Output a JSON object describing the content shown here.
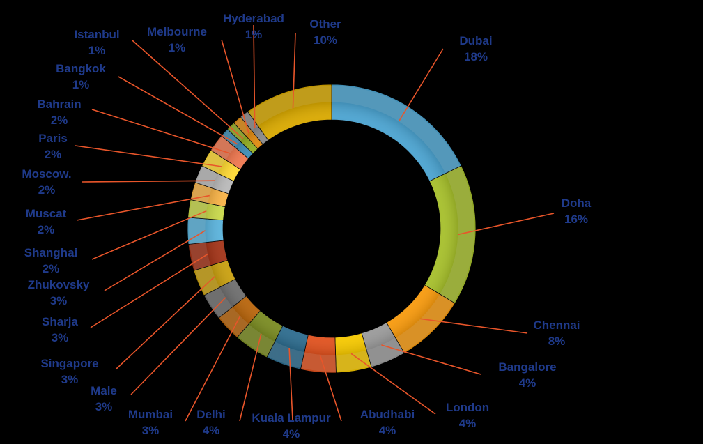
{
  "chart_data": {
    "type": "pie",
    "variant": "doughnut",
    "title": "",
    "legend": "none",
    "slices": [
      {
        "label": "Dubai",
        "value": 18,
        "value_label": "18%",
        "color": "#4BA3D0"
      },
      {
        "label": "Doha",
        "value": 16,
        "value_label": "16%",
        "color": "#A6BF2B"
      },
      {
        "label": "Chennai",
        "value": 8,
        "value_label": "8%",
        "color": "#F79A0E"
      },
      {
        "label": "Bangalore",
        "value": 4,
        "value_label": "4%",
        "color": "#9A9A9A"
      },
      {
        "label": "London",
        "value": 4,
        "value_label": "4%",
        "color": "#F5C800"
      },
      {
        "label": "Abudhabi",
        "value": 4,
        "value_label": "4%",
        "color": "#E0521F"
      },
      {
        "label": "Kuala Lampur",
        "value": 4,
        "value_label": "4%",
        "color": "#2D6C8E"
      },
      {
        "label": "Delhi",
        "value": 4,
        "value_label": "4%",
        "color": "#7A8B22"
      },
      {
        "label": "Mumbai",
        "value": 3,
        "value_label": "3%",
        "color": "#B8650C"
      },
      {
        "label": "Male",
        "value": 3,
        "value_label": "3%",
        "color": "#6E6E6E"
      },
      {
        "label": "Singapore",
        "value": 3,
        "value_label": "3%",
        "color": "#C9A010"
      },
      {
        "label": "Sharja",
        "value": 3,
        "value_label": "3%",
        "color": "#A33418"
      },
      {
        "label": "Zhukovsky",
        "value": 3,
        "value_label": "3%",
        "color": "#5AB2DB"
      },
      {
        "label": "Shanghai",
        "value": 2,
        "value_label": "2%",
        "color": "#C8D84A"
      },
      {
        "label": "Muscat",
        "value": 2,
        "value_label": "2%",
        "color": "#F8B347"
      },
      {
        "label": "Moscow.",
        "value": 2,
        "value_label": "2%",
        "color": "#B9B9B9"
      },
      {
        "label": "Paris",
        "value": 2,
        "value_label": "2%",
        "color": "#FFD933"
      },
      {
        "label": "Bahrain",
        "value": 2,
        "value_label": "2%",
        "color": "#F07850"
      },
      {
        "label": "Bangkok",
        "value": 1,
        "value_label": "1%",
        "color": "#3E8DB5"
      },
      {
        "label": "Istanbul",
        "value": 1,
        "value_label": "1%",
        "color": "#93AD22"
      },
      {
        "label": "Melbourne",
        "value": 1,
        "value_label": "1%",
        "color": "#E08A10"
      },
      {
        "label": "Hyderabad",
        "value": 1,
        "value_label": "1%",
        "color": "#8A8A8A"
      },
      {
        "label": "Other",
        "value": 10,
        "value_label": "10%",
        "color": "#D8A800"
      }
    ]
  },
  "colors": {
    "background": "#000000",
    "label_text": "#1F3A8A",
    "leader_line": "#E8552A"
  }
}
